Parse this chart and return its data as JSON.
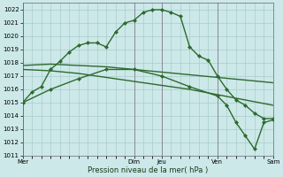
{
  "background_color": "#cce8e8",
  "grid_color": "#aacccc",
  "line_color": "#2d6a2d",
  "title": "Pression niveau de la mer( hPa )",
  "ylim": [
    1011,
    1022.5
  ],
  "yticks": [
    1011,
    1012,
    1013,
    1014,
    1015,
    1016,
    1017,
    1018,
    1019,
    1020,
    1021,
    1022
  ],
  "xtick_labels": [
    "Mer",
    "",
    "Dim",
    "Jeu",
    "",
    "Ven",
    "",
    "Sam"
  ],
  "xtick_positions": [
    0,
    6,
    12,
    15,
    18,
    21,
    24,
    27
  ],
  "vline_positions": [
    0,
    12,
    15,
    21,
    27
  ],
  "series": [
    {
      "x": [
        0,
        1,
        2,
        3,
        4,
        5,
        6,
        7,
        8,
        9,
        10,
        11,
        12,
        13,
        14,
        15,
        16,
        17,
        18,
        19,
        20,
        21,
        22,
        23,
        24,
        25,
        26,
        27
      ],
      "y": [
        1015.0,
        1015.8,
        1016.2,
        1017.5,
        1018.1,
        1018.8,
        1019.3,
        1019.5,
        1019.5,
        1019.2,
        1020.3,
        1021.0,
        1021.2,
        1021.8,
        1022.0,
        1022.0,
        1021.8,
        1021.5,
        1019.2,
        1018.5,
        1018.2,
        1017.0,
        1016.0,
        1015.2,
        1014.8,
        1014.2,
        1013.8,
        1013.8
      ],
      "marker": "D",
      "markersize": 2.0,
      "linewidth": 1.0
    },
    {
      "x": [
        0,
        3,
        6,
        9,
        12,
        15,
        18,
        21,
        24,
        27
      ],
      "y": [
        1017.8,
        1017.9,
        1017.8,
        1017.7,
        1017.5,
        1017.3,
        1017.1,
        1016.9,
        1016.7,
        1016.5
      ],
      "marker": null,
      "markersize": 0,
      "linewidth": 1.0
    },
    {
      "x": [
        0,
        3,
        6,
        9,
        12,
        15,
        18,
        21,
        24,
        27
      ],
      "y": [
        1017.5,
        1017.4,
        1017.2,
        1016.9,
        1016.6,
        1016.3,
        1016.0,
        1015.6,
        1015.2,
        1014.8
      ],
      "marker": null,
      "markersize": 0,
      "linewidth": 1.0
    },
    {
      "x": [
        0,
        3,
        6,
        9,
        12,
        15,
        18,
        21,
        22,
        23,
        24,
        25,
        26,
        27
      ],
      "y": [
        1015.0,
        1016.0,
        1016.8,
        1017.5,
        1017.5,
        1017.0,
        1016.2,
        1015.5,
        1014.8,
        1013.5,
        1012.5,
        1011.5,
        1013.5,
        1013.7
      ],
      "marker": "D",
      "markersize": 2.0,
      "linewidth": 1.0
    }
  ]
}
